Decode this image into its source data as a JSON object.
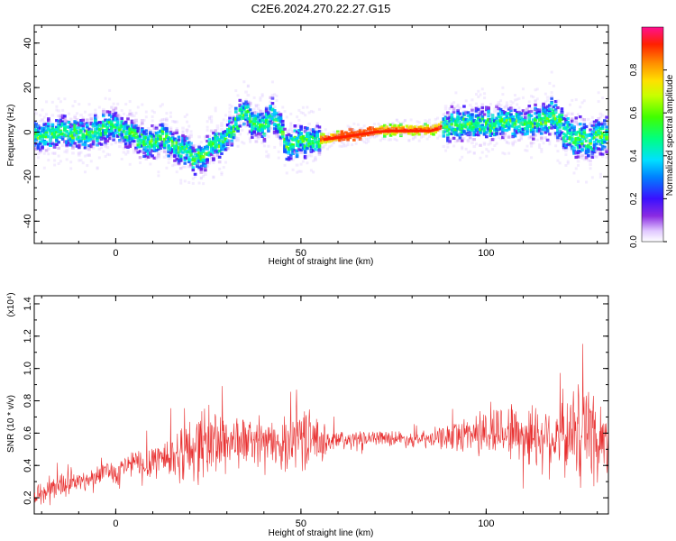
{
  "title": "C2E6.2024.270.22.27.G15",
  "chart_data": [
    {
      "type": "heatmap",
      "xlabel": "Height of straight line (km)",
      "ylabel": "Frequency (Hz)",
      "xlim": [
        -22,
        133
      ],
      "ylim": [
        -50,
        48
      ],
      "x_ticks": [
        0,
        50,
        100
      ],
      "y_ticks": [
        -40,
        -20,
        0,
        20,
        40
      ],
      "colorbar": {
        "label": "Normalized spectral amplitude",
        "range": [
          0.0,
          1.0
        ],
        "ticks": [
          0.0,
          0.2,
          0.4,
          0.6,
          0.8
        ],
        "tick_labels": [
          "0.0",
          "0.2",
          "0.4",
          "0.6",
          "0.8"
        ]
      },
      "ridge": {
        "x": [
          -22,
          -15,
          -8,
          -3,
          0,
          3,
          8,
          13,
          18,
          22,
          25,
          28,
          31,
          33,
          35,
          37,
          40,
          42,
          44,
          46,
          48,
          52,
          58,
          62,
          66,
          70,
          74,
          80,
          85,
          88,
          90,
          93,
          96,
          100,
          105,
          110,
          115,
          118,
          120,
          123,
          126,
          130,
          133
        ],
        "y": [
          -2,
          0,
          -1,
          2,
          3,
          0,
          -5,
          -2,
          -8,
          -12,
          -8,
          -5,
          0,
          5,
          10,
          3,
          2,
          8,
          5,
          -8,
          -5,
          -4,
          -3,
          -2,
          -1,
          0,
          0.5,
          0.5,
          0.5,
          2,
          3,
          4,
          4,
          3,
          5,
          4,
          5,
          8,
          4,
          -2,
          -4,
          -3,
          -2
        ]
      }
    },
    {
      "type": "line",
      "xlabel": "Height of straight line (km)",
      "ylabel": "SNR (10 * v/v)",
      "y_multiplier": "(x10⁴)",
      "xlim": [
        -22,
        133
      ],
      "ylim": [
        0.1,
        1.45
      ],
      "x_ticks": [
        0,
        50,
        100
      ],
      "y_ticks": [
        0.2,
        0.4,
        0.6,
        0.8,
        1.0,
        1.2,
        1.4
      ],
      "y_tick_labels": [
        "0.2",
        "0.4",
        "0.6",
        "0.8",
        "1.0",
        "1.2",
        "1.4"
      ],
      "color": "#e83030",
      "series": [
        {
          "x": [
            -22,
            -18,
            -15,
            -12,
            -8,
            -5,
            -2,
            0,
            3,
            5,
            8,
            10,
            15,
            20,
            25,
            30,
            35,
            40,
            45,
            48,
            50,
            55,
            60,
            65,
            70,
            75,
            80,
            85,
            90,
            95,
            100,
            105,
            110,
            115,
            120,
            125,
            128,
            130,
            133
          ],
          "mean": [
            0.2,
            0.25,
            0.28,
            0.3,
            0.3,
            0.35,
            0.38,
            0.35,
            0.4,
            0.42,
            0.38,
            0.45,
            0.45,
            0.5,
            0.55,
            0.55,
            0.55,
            0.55,
            0.52,
            0.58,
            0.6,
            0.55,
            0.55,
            0.56,
            0.58,
            0.57,
            0.56,
            0.56,
            0.58,
            0.6,
            0.6,
            0.62,
            0.6,
            0.58,
            0.58,
            0.6,
            0.65,
            0.55,
            0.55
          ],
          "spread": [
            0.08,
            0.1,
            0.08,
            0.07,
            0.06,
            0.06,
            0.06,
            0.08,
            0.08,
            0.1,
            0.12,
            0.12,
            0.15,
            0.2,
            0.25,
            0.2,
            0.15,
            0.12,
            0.15,
            0.2,
            0.2,
            0.12,
            0.08,
            0.05,
            0.04,
            0.05,
            0.05,
            0.06,
            0.08,
            0.12,
            0.16,
            0.18,
            0.2,
            0.22,
            0.25,
            0.3,
            0.35,
            0.3,
            0.2
          ]
        }
      ]
    }
  ]
}
